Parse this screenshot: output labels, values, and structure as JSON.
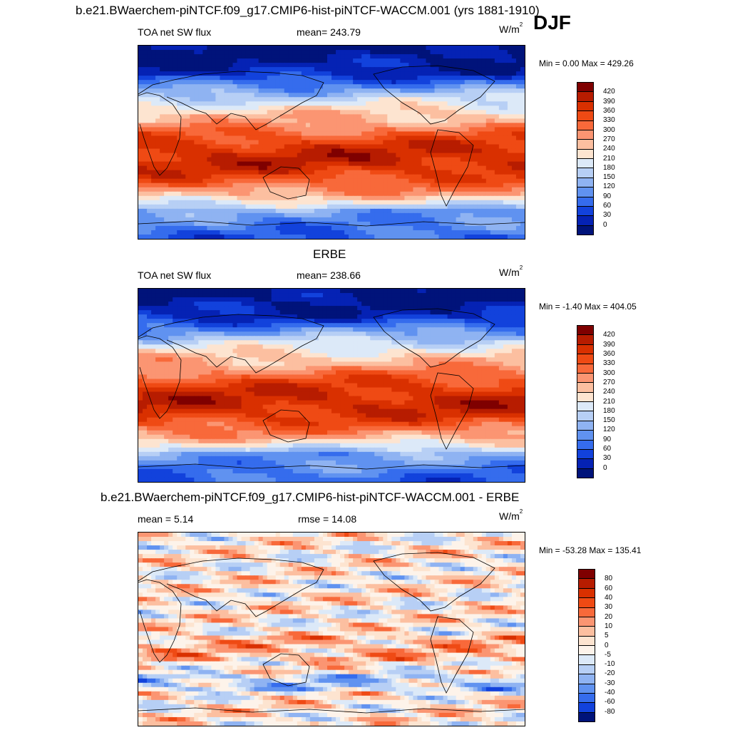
{
  "page": {
    "main_title": "b.e21.BWaerchem-piNTCF.f09_g17.CMIP6-hist-piNTCF-WACCM.001 (yrs 1881-1910)",
    "season": "DJF"
  },
  "panels": [
    {
      "title": "",
      "left_label": "TOA net SW flux",
      "center_label": "mean= 243.79",
      "units_base": "W/m",
      "units_sup": "2",
      "minmax": "Min =   0.00 Max = 429.26",
      "kind": "abs"
    },
    {
      "title": "ERBE",
      "left_label": "TOA net SW flux",
      "center_label": "mean= 238.66",
      "units_base": "W/m",
      "units_sup": "2",
      "minmax": "Min =  -1.40 Max = 404.05",
      "kind": "abs"
    },
    {
      "title": "b.e21.BWaerchem-piNTCF.f09_g17.CMIP6-hist-piNTCF-WACCM.001 - ERBE",
      "left_label": "mean =   5.14",
      "center_label": "rmse =  14.08",
      "units_base": "W/m",
      "units_sup": "2",
      "minmax": "Min = -53.28 Max = 135.41",
      "kind": "diff"
    }
  ],
  "colorbars": {
    "abs": {
      "labels": [
        "420",
        "390",
        "360",
        "330",
        "300",
        "270",
        "240",
        "210",
        "180",
        "150",
        "120",
        "90",
        "60",
        "30",
        "0"
      ],
      "colors": [
        "#7f0000",
        "#b71c00",
        "#d93000",
        "#ef4a14",
        "#f8693a",
        "#fb9572",
        "#fcbfa0",
        "#fde4d0",
        "#dce9f8",
        "#b7cff5",
        "#8fb3f2",
        "#6092f0",
        "#356ced",
        "#1242dc",
        "#0522b4",
        "#00137a"
      ]
    },
    "diff": {
      "labels": [
        "80",
        "60",
        "40",
        "30",
        "20",
        "10",
        "5",
        "0",
        "-5",
        "-10",
        "-20",
        "-30",
        "-40",
        "-60",
        "-80"
      ],
      "colors": [
        "#7f0000",
        "#b71c00",
        "#d93000",
        "#ef4a14",
        "#f8693a",
        "#fb9572",
        "#fcbfa0",
        "#fde4d0",
        "#fdf3ea",
        "#dce9f8",
        "#b7cff5",
        "#8fb3f2",
        "#6092f0",
        "#356ced",
        "#1242dc",
        "#00137a"
      ]
    }
  }
}
